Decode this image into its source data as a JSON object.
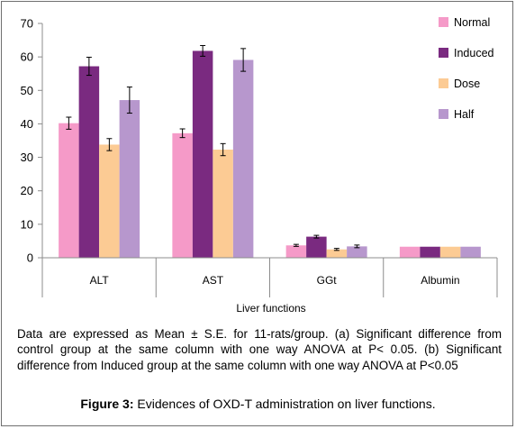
{
  "chart_data": {
    "type": "bar",
    "title": "",
    "xlabel": "Liver functions",
    "ylabel": "",
    "ylim": [
      0,
      70
    ],
    "yticks": [
      0,
      10,
      20,
      30,
      40,
      50,
      60,
      70
    ],
    "categories": [
      "ALT",
      "AST",
      "GGt",
      "Albumin"
    ],
    "legend_position": "top-right",
    "grid": false,
    "series": [
      {
        "name": "Normal",
        "color": "#f59ac8",
        "values": [
          40.2,
          37.2,
          3.7,
          3.3
        ],
        "errors": [
          1.8,
          1.3,
          0.3,
          0
        ]
      },
      {
        "name": "Induced",
        "color": "#7a2a80",
        "values": [
          57.2,
          61.8,
          6.3,
          3.3
        ],
        "errors": [
          2.7,
          1.6,
          0.4,
          0
        ]
      },
      {
        "name": "Dose",
        "color": "#fccb94",
        "values": [
          33.8,
          32.3,
          2.5,
          3.3
        ],
        "errors": [
          1.8,
          1.8,
          0.3,
          0
        ]
      },
      {
        "name": "Half",
        "color": "#b797cd",
        "values": [
          47.1,
          59.1,
          3.4,
          3.3
        ],
        "errors": [
          3.9,
          3.4,
          0.4,
          0
        ]
      }
    ]
  },
  "note": "Data are expressed as Mean ± S.E. for 11-rats/group. (a) Significant difference from control group at the same column with one way ANOVA at P< 0.05. (b) Significant difference from Induced group at the same column with one way ANOVA at P<0.05",
  "caption": {
    "label": "Figure 3:",
    "text": " Evidences of OXD-T administration on liver functions."
  }
}
